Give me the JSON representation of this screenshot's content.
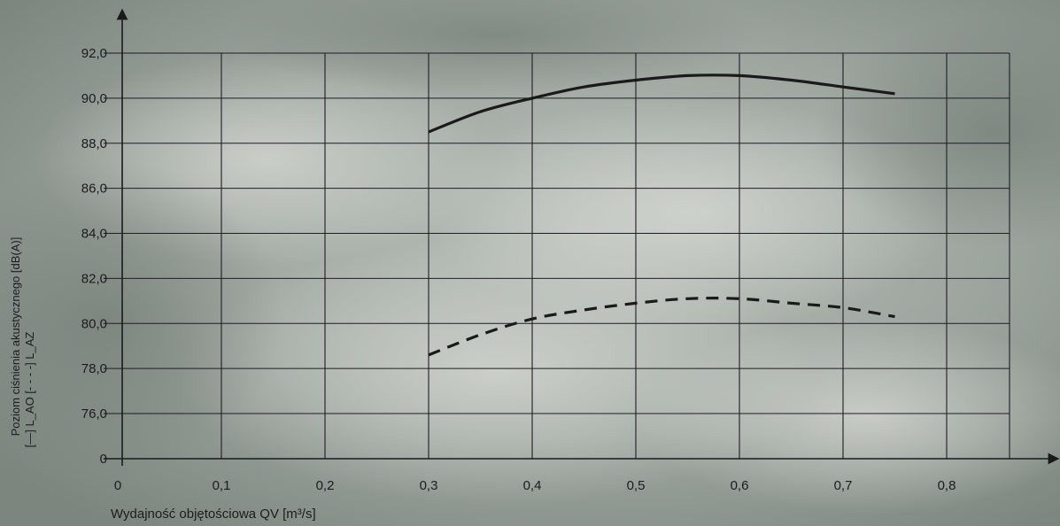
{
  "chart_data": {
    "type": "line",
    "xlabel": "Wydajność objętościowa QV [m³/s]",
    "ylabel_line1": "Poziom ciśnienia akustycznego [dB(A)]",
    "ylabel_line2": "[—] L_AO [- - - -] L_AZ",
    "x_ticks": [
      "0",
      "0,1",
      "0,2",
      "0,3",
      "0,4",
      "0,5",
      "0,6",
      "0,7",
      "0,8"
    ],
    "y_ticks": [
      "0",
      "76,0",
      "78,0",
      "80,0",
      "82,0",
      "84,0",
      "86,0",
      "88,0",
      "90,0",
      "92,0"
    ],
    "xlim": [
      0,
      0.9
    ],
    "ylim": [
      76.0,
      92.0
    ],
    "y_axis_break": "0",
    "grid": true,
    "series": [
      {
        "name": "L_AO",
        "style": "solid",
        "color": "#1a1a1a",
        "x": [
          0.3,
          0.35,
          0.4,
          0.45,
          0.5,
          0.55,
          0.6,
          0.65,
          0.7,
          0.75
        ],
        "y": [
          88.5,
          89.4,
          90.0,
          90.5,
          90.8,
          91.0,
          91.0,
          90.8,
          90.5,
          90.2
        ]
      },
      {
        "name": "L_AZ",
        "style": "dashed",
        "color": "#1a1a1a",
        "x": [
          0.3,
          0.35,
          0.4,
          0.45,
          0.5,
          0.55,
          0.6,
          0.65,
          0.7,
          0.75
        ],
        "y": [
          78.6,
          79.5,
          80.2,
          80.6,
          80.9,
          81.1,
          81.1,
          80.9,
          80.7,
          80.3
        ]
      }
    ]
  }
}
